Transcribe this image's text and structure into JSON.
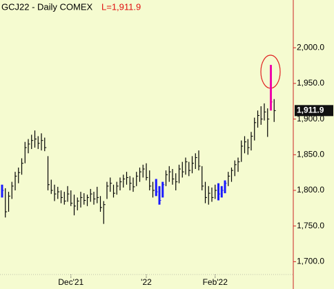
{
  "chart_data": {
    "type": "hlc",
    "title": "GCJ22 - Daily  COMEX",
    "last_text": "L=1,911.9",
    "last_price_label": "1,911.9",
    "categories": [
      null,
      null,
      null,
      null,
      null,
      null,
      null,
      null,
      null,
      null,
      null,
      null,
      null,
      null,
      null,
      null,
      null,
      null,
      null,
      null,
      null,
      "Dec'21",
      null,
      null,
      null,
      null,
      null,
      null,
      null,
      null,
      null,
      null,
      null,
      null,
      null,
      null,
      null,
      null,
      null,
      null,
      null,
      null,
      null,
      null,
      "'22",
      null,
      null,
      null,
      null,
      null,
      null,
      null,
      null,
      null,
      null,
      null,
      null,
      null,
      null,
      null,
      null,
      null,
      null,
      null,
      null,
      "Feb'22",
      null,
      null,
      null,
      null,
      null,
      null,
      null,
      null,
      null,
      null,
      null,
      null,
      null,
      null,
      null,
      null,
      null,
      null
    ],
    "high": [
      1808,
      1803,
      1798,
      1812,
      1826,
      1832,
      1845,
      1868,
      1872,
      1878,
      1884,
      1876,
      1880,
      1874,
      1848,
      1815,
      1808,
      1805,
      1800,
      1798,
      1806,
      1800,
      1794,
      1790,
      1798,
      1796,
      1794,
      1802,
      1798,
      1805,
      1792,
      1785,
      1812,
      1818,
      1808,
      1812,
      1818,
      1822,
      1826,
      1820,
      1818,
      1826,
      1832,
      1836,
      1838,
      1828,
      1812,
      1816,
      1806,
      1812,
      1828,
      1834,
      1830,
      1824,
      1836,
      1840,
      1846,
      1840,
      1848,
      1852,
      1856,
      1834,
      1812,
      1806,
      1804,
      1808,
      1810,
      1806,
      1814,
      1826,
      1832,
      1842,
      1846,
      1870,
      1876,
      1872,
      1882,
      1902,
      1912,
      1918,
      1922,
      1915,
      1976,
      1928
    ],
    "low": [
      1790,
      1762,
      1770,
      1788,
      1800,
      1810,
      1822,
      1838,
      1852,
      1858,
      1860,
      1858,
      1856,
      1855,
      1800,
      1795,
      1785,
      1788,
      1782,
      1780,
      1784,
      1778,
      1765,
      1772,
      1776,
      1780,
      1778,
      1784,
      1780,
      1782,
      1770,
      1753,
      1788,
      1798,
      1790,
      1794,
      1800,
      1804,
      1808,
      1800,
      1798,
      1806,
      1812,
      1818,
      1814,
      1800,
      1790,
      1792,
      1780,
      1790,
      1806,
      1812,
      1808,
      1800,
      1810,
      1818,
      1822,
      1820,
      1824,
      1830,
      1828,
      1800,
      1782,
      1780,
      1784,
      1788,
      1786,
      1790,
      1796,
      1806,
      1812,
      1820,
      1826,
      1840,
      1852,
      1850,
      1856,
      1870,
      1888,
      1892,
      1898,
      1875,
      1912,
      1896
    ],
    "close": [
      1800,
      1770,
      1792,
      1806,
      1820,
      1825,
      1838,
      1860,
      1865,
      1870,
      1872,
      1866,
      1870,
      1860,
      1808,
      1800,
      1795,
      1798,
      1790,
      1785,
      1795,
      1782,
      1778,
      1785,
      1790,
      1786,
      1790,
      1795,
      1788,
      1790,
      1776,
      1780,
      1806,
      1810,
      1796,
      1806,
      1812,
      1816,
      1818,
      1810,
      1805,
      1820,
      1826,
      1830,
      1818,
      1806,
      1800,
      1798,
      1786,
      1808,
      1822,
      1826,
      1816,
      1812,
      1830,
      1826,
      1840,
      1828,
      1838,
      1846,
      1834,
      1806,
      1790,
      1796,
      1790,
      1800,
      1795,
      1800,
      1810,
      1820,
      1828,
      1836,
      1840,
      1862,
      1868,
      1860,
      1876,
      1895,
      1905,
      1900,
      1910,
      1900,
      1924,
      1911.9
    ],
    "bar_colors": [
      "#1a1aff",
      "#000000",
      "#000000",
      "#000000",
      "#000000",
      "#000000",
      "#000000",
      "#000000",
      "#000000",
      "#000000",
      "#000000",
      "#000000",
      "#000000",
      "#000000",
      "#000000",
      "#000000",
      "#000000",
      "#000000",
      "#000000",
      "#000000",
      "#000000",
      "#000000",
      "#000000",
      "#000000",
      "#000000",
      "#000000",
      "#000000",
      "#000000",
      "#000000",
      "#000000",
      "#000000",
      "#000000",
      "#000000",
      "#000000",
      "#000000",
      "#000000",
      "#000000",
      "#000000",
      "#000000",
      "#000000",
      "#000000",
      "#000000",
      "#000000",
      "#000000",
      "#000000",
      "#000000",
      "#000000",
      "#1a1aff",
      "#1a1aff",
      "#1a1aff",
      "#000000",
      "#000000",
      "#000000",
      "#000000",
      "#000000",
      "#000000",
      "#000000",
      "#000000",
      "#000000",
      "#000000",
      "#000000",
      "#000000",
      "#000000",
      "#000000",
      "#000000",
      "#000000",
      "#1a1aff",
      "#1a1aff",
      "#1a1aff",
      "#000000",
      "#000000",
      "#000000",
      "#000000",
      "#000000",
      "#000000",
      "#000000",
      "#000000",
      "#000000",
      "#000000",
      "#000000",
      "#000000",
      "#000000",
      "#ee00aa",
      "#000000"
    ],
    "ylim": [
      1682,
      2067
    ],
    "yticks": [
      {
        "value": 1700,
        "label": "1,700.0"
      },
      {
        "value": 1750,
        "label": "1,750.0"
      },
      {
        "value": 1800,
        "label": "1,800.0"
      },
      {
        "value": 1850,
        "label": "1,850.0"
      },
      {
        "value": 1900,
        "label": "1,900.0"
      },
      {
        "value": 1950,
        "label": "1,950.0"
      },
      {
        "value": 2000,
        "label": "2,000.0"
      }
    ],
    "axis_color": "#cc2222"
  }
}
